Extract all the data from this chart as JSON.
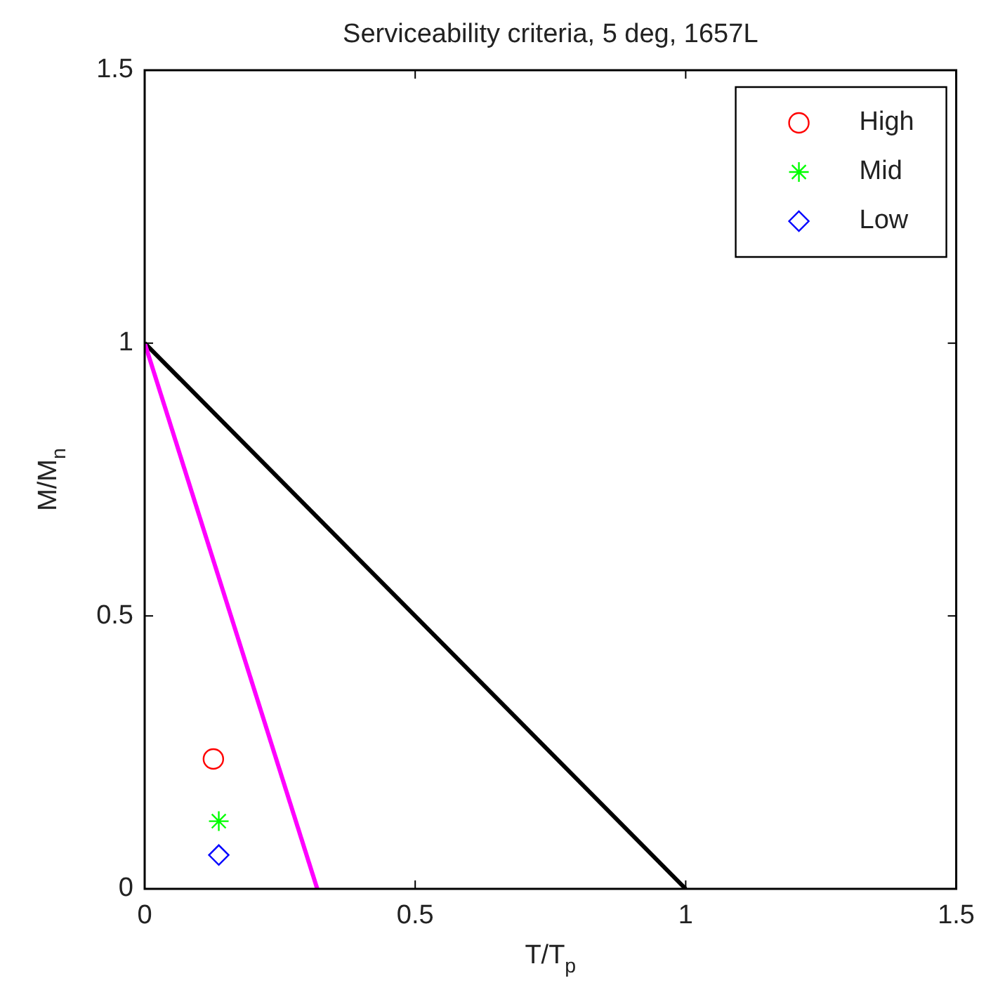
{
  "chart_data": {
    "type": "scatter",
    "title": "Serviceability criteria, 5 deg, 1657L",
    "xlabel": "T/T$_{p}$",
    "ylabel": "M/M$_{n}$",
    "xlim": [
      0,
      1.5
    ],
    "ylim": [
      0,
      1.5
    ],
    "xticks": [
      0,
      0.5,
      1,
      1.5
    ],
    "yticks": [
      0,
      0.5,
      1,
      1.5
    ],
    "grid": false,
    "legend": "top right",
    "series": [
      {
        "name": "High",
        "color": "#ff0000",
        "marker": "circle",
        "x": [
          0.127
        ],
        "values": [
          0.238
        ]
      },
      {
        "name": "Mid",
        "color": "#00ff00",
        "marker": "cross",
        "x": [
          0.137
        ],
        "values": [
          0.124
        ]
      },
      {
        "name": "Low",
        "color": "#0000ff",
        "marker": "diamond",
        "x": [
          0.137
        ],
        "values": [
          0.062
        ]
      },
      {
        "type": "line",
        "color": "#ff00ff",
        "marker": "none",
        "x": [
          0,
          0.319
        ],
        "values": [
          1,
          0
        ]
      },
      {
        "type": "line",
        "color": "#000000",
        "marker": "none",
        "x": [
          0,
          1
        ],
        "values": [
          1,
          0
        ]
      }
    ]
  }
}
